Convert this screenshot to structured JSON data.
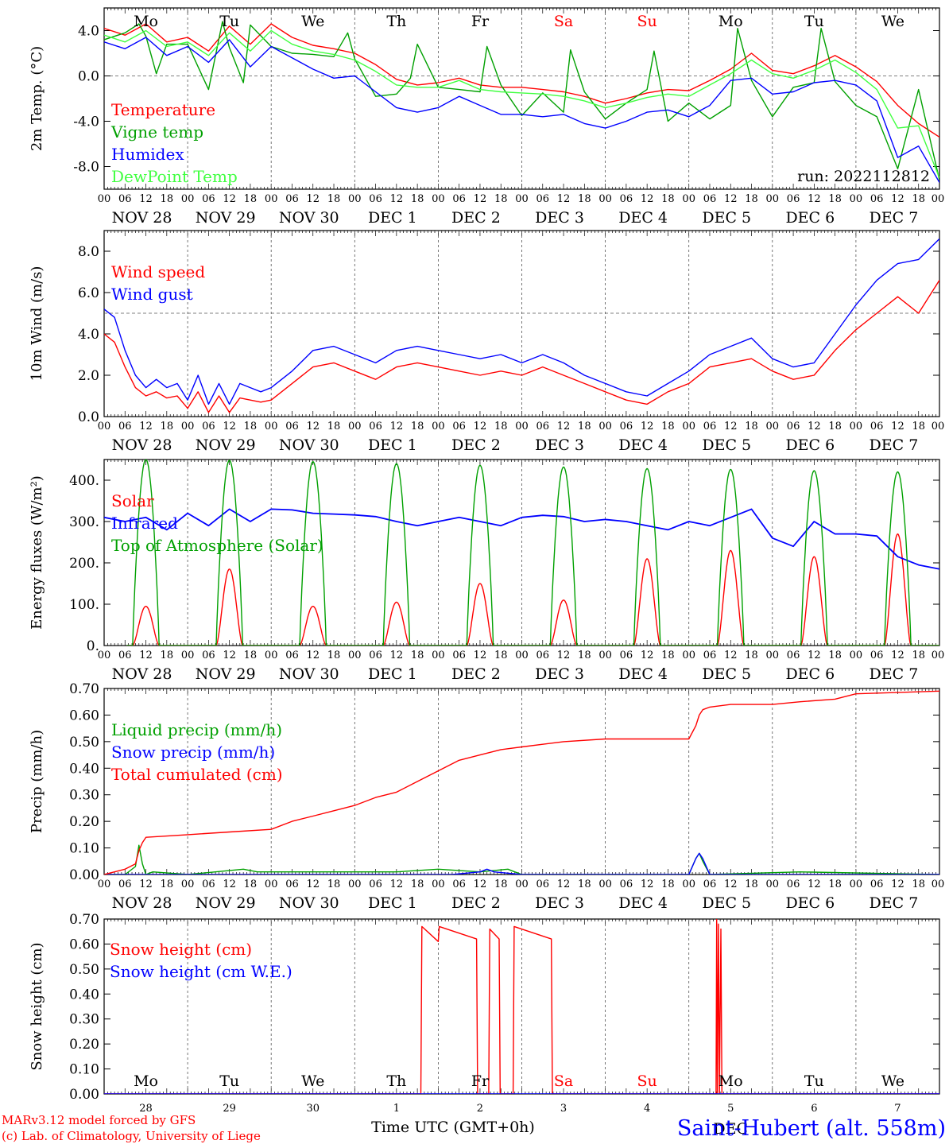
{
  "footer": {
    "credit1": "MARv3.12 model forced by GFS",
    "credit2": "(c) Lab. of Climatology, University of Liege",
    "xlabel": "Time UTC (GMT+0h)",
    "station": "Saint-Hubert (alt. 558m)",
    "run": "run: 2022112812"
  },
  "colors": {
    "red": "#ff0000",
    "green": "#00a000",
    "blue": "#0000ff",
    "lightgreen": "#40ff40",
    "axis": "#000000",
    "dash": "#555555"
  },
  "days": {
    "weekday_labels": [
      "Mo",
      "Tu",
      "We",
      "Th",
      "Fr",
      "Sa",
      "Su",
      "Mo",
      "Tu",
      "We"
    ],
    "weekend_flags": [
      false,
      false,
      false,
      false,
      false,
      true,
      true,
      false,
      false,
      false
    ],
    "date_labels": [
      "NOV 28",
      "NOV 29",
      "NOV 30",
      "DEC  1",
      "DEC  2",
      "DEC  3",
      "DEC  4",
      "DEC  5",
      "DEC  6",
      "DEC  7"
    ],
    "hour_ticks": [
      "00",
      "06",
      "12",
      "18"
    ],
    "final_tick": "00",
    "bottom_day_numbers": [
      "28",
      "29",
      "30",
      "1",
      "2",
      "3",
      "4",
      "5",
      "6",
      "7"
    ],
    "bottom_month": "DEC"
  },
  "chart_data": [
    {
      "type": "line",
      "ylabel": "2m Temp. (°C)",
      "ylim": [
        -10,
        6
      ],
      "yticks": [
        "4.0",
        "0.0",
        "-4.0",
        "-8.0"
      ],
      "ytick_values": [
        4,
        0,
        -4,
        -8
      ],
      "ref_line": 0,
      "x_unit": "hours since 2022-11-28 00 UTC",
      "series": [
        {
          "name": "Temperature",
          "color": "#ff0000",
          "x": [
            0,
            6,
            12,
            18,
            24,
            30,
            36,
            42,
            48,
            54,
            60,
            66,
            72,
            78,
            84,
            90,
            96,
            102,
            108,
            114,
            120,
            126,
            132,
            138,
            144,
            150,
            156,
            162,
            168,
            174,
            180,
            186,
            192,
            198,
            204,
            210,
            216,
            222,
            228,
            234,
            240
          ],
          "values": [
            4.2,
            3.6,
            4.6,
            3.0,
            3.4,
            2.2,
            4.4,
            2.8,
            4.6,
            3.4,
            2.7,
            2.4,
            2.0,
            1.0,
            -0.3,
            -0.8,
            -0.6,
            -0.2,
            -0.8,
            -1.0,
            -1.0,
            -1.2,
            -1.4,
            -1.8,
            -2.4,
            -2.0,
            -1.5,
            -1.2,
            -1.3,
            -0.4,
            0.6,
            2.0,
            0.5,
            0.2,
            0.9,
            1.8,
            0.8,
            -0.5,
            -2.6,
            -4.2,
            -5.4
          ]
        },
        {
          "name": "Vigne temp",
          "color": "#00a000",
          "x": [
            0,
            6,
            10,
            12,
            15,
            18,
            24,
            30,
            34,
            36,
            40,
            42,
            48,
            54,
            60,
            66,
            70,
            72,
            78,
            84,
            88,
            90,
            96,
            102,
            108,
            110,
            114,
            120,
            126,
            132,
            134,
            138,
            144,
            150,
            156,
            158,
            162,
            168,
            174,
            180,
            182,
            186,
            192,
            198,
            204,
            206,
            210,
            216,
            222,
            228,
            234,
            240
          ],
          "values": [
            3.2,
            3.8,
            4.6,
            3.5,
            0.2,
            2.8,
            2.8,
            -1.2,
            4.8,
            2.5,
            -0.6,
            4.5,
            2.6,
            2.0,
            1.9,
            1.7,
            3.8,
            1.5,
            -1.8,
            -1.6,
            -0.2,
            2.8,
            -1.0,
            -1.2,
            -1.4,
            2.6,
            -0.8,
            -3.5,
            -1.5,
            -3.2,
            2.3,
            -1.4,
            -3.8,
            -2.4,
            -1.2,
            2.2,
            -4.0,
            -2.4,
            -3.8,
            -2.6,
            4.2,
            -0.4,
            -3.6,
            -1.0,
            -0.6,
            4.2,
            -0.5,
            -2.6,
            -3.6,
            -8.2,
            -1.2,
            -9.2
          ]
        },
        {
          "name": "Humidex",
          "color": "#0000ff",
          "x": [
            0,
            6,
            12,
            18,
            24,
            30,
            36,
            42,
            48,
            54,
            60,
            66,
            72,
            78,
            84,
            90,
            96,
            102,
            108,
            114,
            120,
            126,
            132,
            138,
            144,
            150,
            156,
            162,
            168,
            174,
            180,
            186,
            192,
            198,
            204,
            210,
            216,
            222,
            228,
            234,
            240
          ],
          "values": [
            3.0,
            2.4,
            3.4,
            1.8,
            2.6,
            1.2,
            3.2,
            0.8,
            2.6,
            1.6,
            0.6,
            -0.2,
            0.0,
            -1.4,
            -2.8,
            -3.2,
            -2.8,
            -1.8,
            -2.6,
            -3.4,
            -3.4,
            -3.6,
            -3.4,
            -4.2,
            -4.6,
            -4.0,
            -3.2,
            -3.0,
            -3.6,
            -2.6,
            -0.4,
            -0.2,
            -1.6,
            -1.4,
            -0.6,
            -0.4,
            -0.8,
            -2.2,
            -7.2,
            -6.2,
            -9.4
          ]
        },
        {
          "name": "DewPoint Temp",
          "color": "#40ff40",
          "x": [
            0,
            6,
            12,
            18,
            24,
            30,
            36,
            42,
            48,
            54,
            60,
            66,
            72,
            78,
            84,
            90,
            96,
            102,
            108,
            114,
            120,
            126,
            132,
            138,
            144,
            150,
            156,
            162,
            168,
            174,
            180,
            186,
            192,
            198,
            204,
            210,
            216,
            222,
            228,
            234,
            240
          ],
          "values": [
            3.6,
            3.0,
            4.0,
            2.6,
            3.0,
            1.8,
            3.8,
            2.2,
            4.0,
            2.8,
            2.2,
            1.9,
            1.4,
            0.4,
            -0.8,
            -1.0,
            -1.0,
            -0.4,
            -1.2,
            -1.4,
            -1.5,
            -1.6,
            -1.8,
            -2.2,
            -2.8,
            -2.4,
            -1.9,
            -1.6,
            -1.8,
            -0.8,
            0.2,
            1.4,
            0.2,
            -0.2,
            0.5,
            1.4,
            0.3,
            -1.2,
            -4.6,
            -4.4,
            -9.0
          ]
        }
      ]
    },
    {
      "type": "line",
      "ylabel": "10m Wind (m/s)",
      "ylim": [
        0,
        9
      ],
      "yticks": [
        "8.0",
        "6.0",
        "4.0",
        "2.0",
        "0.0"
      ],
      "ytick_values": [
        8,
        6,
        4,
        2,
        0
      ],
      "ref_line": 5,
      "x_unit": "hours since 2022-11-28 00 UTC",
      "series": [
        {
          "name": "Wind speed",
          "color": "#ff0000",
          "x": [
            0,
            3,
            6,
            9,
            12,
            15,
            18,
            21,
            24,
            27,
            30,
            33,
            36,
            39,
            42,
            45,
            48,
            54,
            60,
            66,
            72,
            78,
            84,
            90,
            96,
            102,
            108,
            114,
            120,
            126,
            132,
            138,
            144,
            150,
            156,
            162,
            168,
            174,
            180,
            186,
            192,
            198,
            204,
            210,
            216,
            222,
            228,
            234,
            240
          ],
          "values": [
            4.0,
            3.6,
            2.4,
            1.4,
            1.0,
            1.2,
            0.9,
            1.0,
            0.4,
            1.2,
            0.2,
            1.0,
            0.2,
            0.9,
            0.8,
            0.7,
            0.8,
            1.6,
            2.4,
            2.6,
            2.2,
            1.8,
            2.4,
            2.6,
            2.4,
            2.2,
            2.0,
            2.2,
            2.0,
            2.4,
            2.0,
            1.6,
            1.2,
            0.8,
            0.6,
            1.2,
            1.6,
            2.4,
            2.6,
            2.8,
            2.2,
            1.8,
            2.0,
            3.2,
            4.2,
            5.0,
            5.8,
            5.0,
            6.6
          ]
        },
        {
          "name": "Wind gust",
          "color": "#0000ff",
          "x": [
            0,
            3,
            6,
            9,
            12,
            15,
            18,
            21,
            24,
            27,
            30,
            33,
            36,
            39,
            42,
            45,
            48,
            54,
            60,
            66,
            72,
            78,
            84,
            90,
            96,
            102,
            108,
            114,
            120,
            126,
            132,
            138,
            144,
            150,
            156,
            162,
            168,
            174,
            180,
            186,
            192,
            198,
            204,
            210,
            216,
            222,
            228,
            234,
            240
          ],
          "values": [
            5.2,
            4.8,
            3.2,
            2.0,
            1.4,
            1.8,
            1.4,
            1.6,
            0.8,
            2.0,
            0.6,
            1.6,
            0.6,
            1.6,
            1.4,
            1.2,
            1.4,
            2.2,
            3.2,
            3.4,
            3.0,
            2.6,
            3.2,
            3.4,
            3.2,
            3.0,
            2.8,
            3.0,
            2.6,
            3.0,
            2.6,
            2.0,
            1.6,
            1.2,
            1.0,
            1.6,
            2.2,
            3.0,
            3.4,
            3.8,
            2.8,
            2.4,
            2.6,
            4.0,
            5.4,
            6.6,
            7.4,
            7.6,
            8.6
          ]
        }
      ]
    },
    {
      "type": "line",
      "ylabel": "Energy fluxes (W/m²)",
      "ylim": [
        0,
        450
      ],
      "yticks": [
        "400.",
        "300.",
        "200.",
        "100.",
        "0."
      ],
      "ytick_values": [
        400,
        300,
        200,
        100,
        0
      ],
      "x_unit": "hours since 2022-11-28 00 UTC",
      "daily_peaks": {
        "toa_solar": [
          450,
          448,
          445,
          440,
          436,
          432,
          428,
          426,
          423,
          420
        ],
        "solar": [
          95,
          185,
          95,
          105,
          150,
          110,
          210,
          230,
          215,
          270
        ]
      },
      "series": [
        {
          "name": "Solar",
          "color": "#ff0000"
        },
        {
          "name": "Infrared",
          "color": "#0000ff",
          "x": [
            0,
            6,
            12,
            18,
            24,
            30,
            36,
            42,
            48,
            54,
            60,
            66,
            72,
            78,
            84,
            90,
            96,
            102,
            108,
            114,
            120,
            126,
            132,
            138,
            144,
            150,
            156,
            162,
            168,
            174,
            180,
            186,
            192,
            198,
            204,
            210,
            216,
            222,
            228,
            234,
            240
          ],
          "values": [
            310,
            300,
            310,
            280,
            320,
            290,
            330,
            300,
            330,
            328,
            320,
            318,
            316,
            312,
            300,
            290,
            300,
            310,
            300,
            290,
            310,
            315,
            312,
            300,
            305,
            300,
            290,
            280,
            300,
            290,
            310,
            330,
            260,
            240,
            300,
            270,
            270,
            265,
            215,
            195,
            185
          ]
        },
        {
          "name": "Top of Atmosphere (Solar)",
          "color": "#00a000"
        }
      ]
    },
    {
      "type": "line",
      "ylabel": "Precip (mm/h)",
      "ylim": [
        0,
        0.7
      ],
      "yticks": [
        "0.70",
        "0.60",
        "0.50",
        "0.40",
        "0.30",
        "0.20",
        "0.10",
        "0.00"
      ],
      "ytick_values": [
        0.7,
        0.6,
        0.5,
        0.4,
        0.3,
        0.2,
        0.1,
        0
      ],
      "x_unit": "hours since 2022-11-28 00 UTC",
      "series": [
        {
          "name": "Liquid precip (mm/h)",
          "color": "#00a000",
          "x": [
            0,
            6,
            9,
            10,
            11,
            12,
            14,
            24,
            40,
            44,
            54,
            72,
            84,
            96,
            108,
            116,
            118,
            120,
            168,
            170,
            171,
            172,
            174,
            200,
            240
          ],
          "values": [
            0,
            0,
            0.03,
            0.11,
            0.04,
            0,
            0.01,
            0,
            0.02,
            0.01,
            0.01,
            0.01,
            0.01,
            0.02,
            0.01,
            0.02,
            0.01,
            0,
            0,
            0.06,
            0.08,
            0.05,
            0,
            0.01,
            0
          ]
        },
        {
          "name": "Snow precip (mm/h)",
          "color": "#0000ff",
          "x": [
            0,
            100,
            108,
            110,
            112,
            120,
            168,
            170,
            171,
            172,
            174,
            240
          ],
          "values": [
            0,
            0,
            0.01,
            0.02,
            0.01,
            0,
            0,
            0.06,
            0.08,
            0.06,
            0,
            0
          ]
        },
        {
          "name": "Total cumulated (cm)",
          "color": "#ff0000",
          "x": [
            0,
            6,
            9,
            10,
            11,
            12,
            24,
            36,
            48,
            54,
            60,
            66,
            72,
            78,
            84,
            90,
            96,
            102,
            108,
            114,
            120,
            126,
            132,
            144,
            156,
            168,
            170,
            171,
            172,
            174,
            180,
            192,
            200,
            210,
            216,
            240
          ],
          "values": [
            0,
            0.02,
            0.04,
            0.09,
            0.12,
            0.14,
            0.15,
            0.16,
            0.17,
            0.2,
            0.22,
            0.24,
            0.26,
            0.29,
            0.31,
            0.35,
            0.39,
            0.43,
            0.45,
            0.47,
            0.48,
            0.49,
            0.5,
            0.51,
            0.51,
            0.51,
            0.56,
            0.6,
            0.62,
            0.63,
            0.64,
            0.64,
            0.65,
            0.66,
            0.68,
            0.69
          ]
        }
      ]
    },
    {
      "type": "line",
      "ylabel": "Snow height (cm)",
      "ylim": [
        0,
        0.7
      ],
      "yticks": [
        "0.70",
        "0.60",
        "0.50",
        "0.40",
        "0.30",
        "0.20",
        "0.10",
        "0.00"
      ],
      "ytick_values": [
        0.7,
        0.6,
        0.5,
        0.4,
        0.3,
        0.2,
        0.1,
        0
      ],
      "x_unit": "hours since 2022-11-28 00 UTC",
      "series": [
        {
          "name": "Snow height (cm)",
          "color": "#ff0000",
          "x": [
            0,
            91,
            91.3,
            96,
            96.3,
            107,
            107.3,
            110.5,
            110.8,
            113.5,
            113.8,
            117.5,
            117.8,
            128.5,
            128.8,
            175.8,
            176,
            176.2,
            176.5,
            176.8,
            177.2,
            177.5,
            240
          ],
          "values": [
            0,
            0,
            0.67,
            0.61,
            0.67,
            0.62,
            0,
            0,
            0.66,
            0.62,
            0,
            0,
            0.67,
            0.62,
            0,
            0,
            0.7,
            0,
            0.68,
            0,
            0.66,
            0,
            0
          ]
        },
        {
          "name": "Snow height (cm W.E.)",
          "color": "#0000ff",
          "x": [
            0,
            240
          ],
          "values": [
            0,
            0
          ]
        }
      ]
    }
  ]
}
